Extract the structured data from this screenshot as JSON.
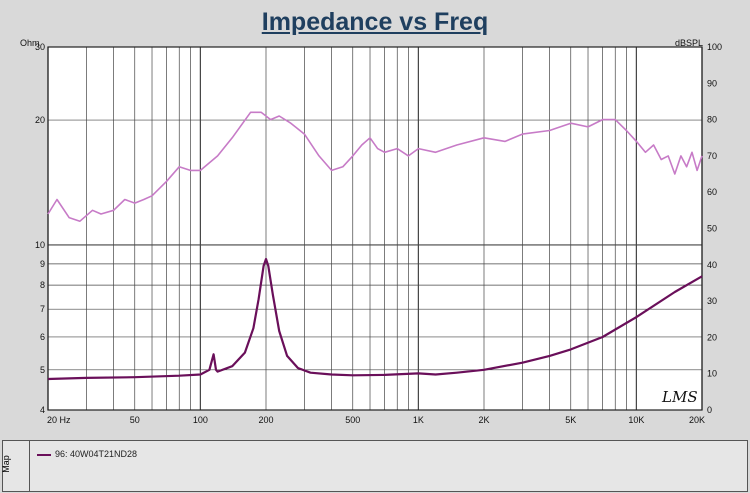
{
  "chart_data": {
    "type": "line",
    "title": "Impedance vs Freq",
    "left_axis_label": "Ohm",
    "right_axis_label": "dBSPL",
    "left_axis": {
      "scale": "log",
      "range": [
        4,
        30
      ],
      "ticks": [
        "4",
        "5",
        "6",
        "7",
        "8",
        "9",
        "10",
        "20",
        "30"
      ]
    },
    "right_axis": {
      "scale": "linear",
      "range": [
        0,
        100
      ],
      "ticks": [
        "0",
        "10",
        "20",
        "30",
        "40",
        "50",
        "60",
        "70",
        "80",
        "90",
        "100"
      ]
    },
    "x_axis": {
      "scale": "log",
      "range": [
        20,
        20000
      ],
      "ticks": [
        "20 Hz",
        "50",
        "100",
        "200",
        "500",
        "1K",
        "2K",
        "5K",
        "10K",
        "20K"
      ]
    },
    "grid": true,
    "legend": {
      "position": "bottom",
      "tab_label": "Map",
      "entry": "96: 40W04T21ND28"
    },
    "watermark": "LMS",
    "colors": {
      "impedance": "#6a0f5a",
      "spl": "#c77bc7",
      "grid": "#444444",
      "plot_bg": "#ffffff"
    },
    "series": [
      {
        "id": "impedance",
        "axis": "left",
        "x": [
          20,
          30,
          50,
          80,
          100,
          110,
          115,
          118,
          120,
          140,
          160,
          175,
          185,
          195,
          200,
          205,
          215,
          230,
          250,
          280,
          320,
          400,
          500,
          700,
          1000,
          1200,
          1500,
          2000,
          3000,
          4000,
          5000,
          7000,
          10000,
          15000,
          20000
        ],
        "y": [
          4.75,
          4.78,
          4.8,
          4.84,
          4.87,
          5.0,
          5.45,
          5.0,
          4.95,
          5.1,
          5.5,
          6.3,
          7.4,
          8.9,
          9.25,
          8.9,
          7.6,
          6.2,
          5.4,
          5.05,
          4.92,
          4.87,
          4.85,
          4.86,
          4.9,
          4.87,
          4.92,
          5.0,
          5.2,
          5.4,
          5.6,
          6.0,
          6.7,
          7.7,
          8.4
        ]
      },
      {
        "id": "spl",
        "axis": "right",
        "x": [
          20,
          22,
          25,
          28,
          32,
          35,
          40,
          45,
          50,
          55,
          60,
          70,
          80,
          90,
          100,
          120,
          140,
          170,
          190,
          210,
          230,
          260,
          300,
          350,
          400,
          450,
          500,
          550,
          600,
          650,
          700,
          800,
          900,
          1000,
          1200,
          1500,
          2000,
          2500,
          3000,
          4000,
          5000,
          6000,
          7000,
          8000,
          9000,
          10000,
          11000,
          12000,
          13000,
          14000,
          15000,
          16000,
          17000,
          18000,
          19000,
          20000
        ],
        "y": [
          54,
          58,
          53,
          52,
          55,
          54,
          55,
          58,
          57,
          58,
          59,
          63,
          67,
          66,
          66,
          70,
          75,
          82,
          82,
          80,
          81,
          79,
          76,
          70,
          66,
          67,
          70,
          73,
          75,
          72,
          71,
          72,
          70,
          72,
          71,
          73,
          75,
          74,
          76,
          77,
          79,
          78,
          80,
          80,
          77,
          74,
          71,
          73,
          69,
          70,
          65,
          70,
          67,
          71,
          66,
          70
        ]
      }
    ]
  }
}
